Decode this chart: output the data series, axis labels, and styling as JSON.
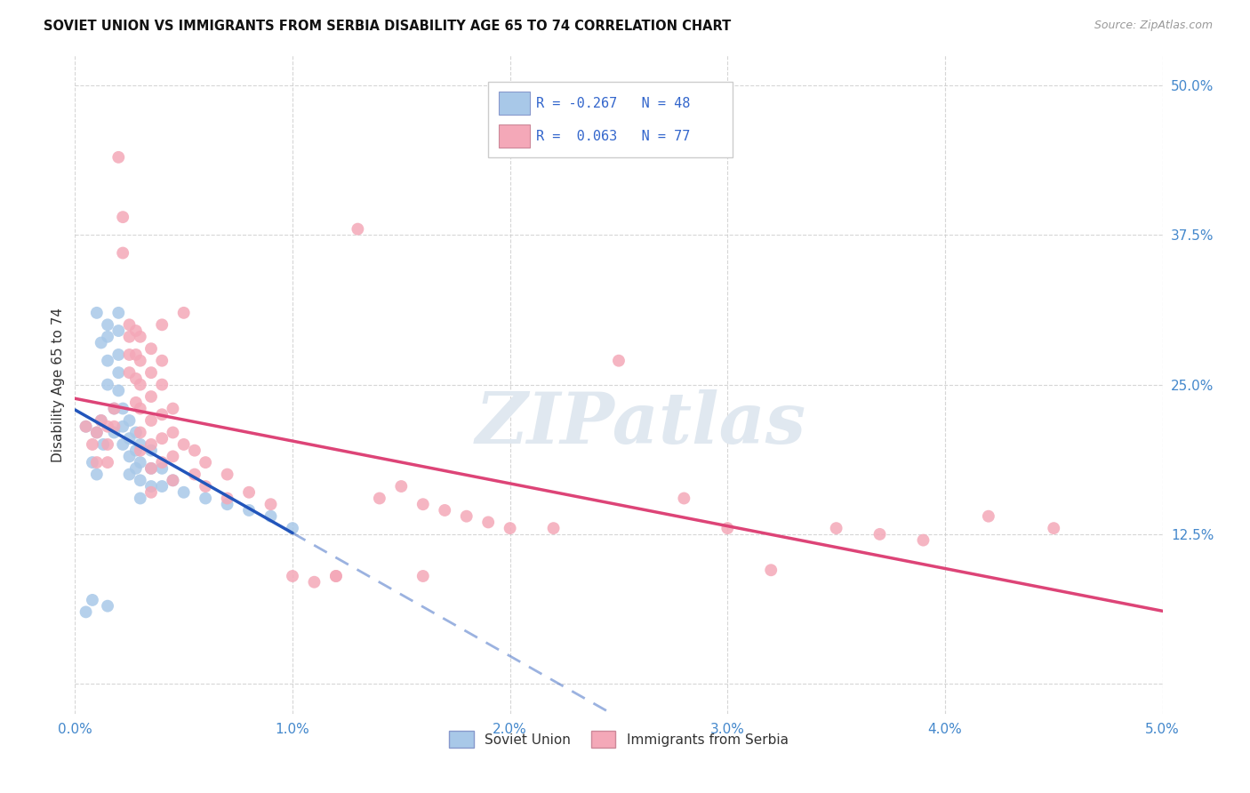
{
  "title": "SOVIET UNION VS IMMIGRANTS FROM SERBIA DISABILITY AGE 65 TO 74 CORRELATION CHART",
  "source": "Source: ZipAtlas.com",
  "ylabel": "Disability Age 65 to 74",
  "legend_blue_label": "Soviet Union",
  "legend_pink_label": "Immigrants from Serbia",
  "R_blue": -0.267,
  "N_blue": 48,
  "R_pink": 0.063,
  "N_pink": 77,
  "blue_color": "#a8c8e8",
  "pink_color": "#f4a8b8",
  "blue_line_color": "#2255bb",
  "pink_line_color": "#dd4477",
  "xmin": 0.0,
  "xmax": 0.05,
  "ymin": -0.025,
  "ymax": 0.525,
  "blue_scatter": [
    [
      0.0005,
      0.215
    ],
    [
      0.0008,
      0.185
    ],
    [
      0.001,
      0.21
    ],
    [
      0.001,
      0.175
    ],
    [
      0.0012,
      0.22
    ],
    [
      0.0013,
      0.2
    ],
    [
      0.0015,
      0.3
    ],
    [
      0.0015,
      0.29
    ],
    [
      0.0015,
      0.27
    ],
    [
      0.0015,
      0.25
    ],
    [
      0.0018,
      0.23
    ],
    [
      0.0018,
      0.21
    ],
    [
      0.002,
      0.31
    ],
    [
      0.002,
      0.295
    ],
    [
      0.002,
      0.275
    ],
    [
      0.002,
      0.26
    ],
    [
      0.002,
      0.245
    ],
    [
      0.0022,
      0.23
    ],
    [
      0.0022,
      0.215
    ],
    [
      0.0022,
      0.2
    ],
    [
      0.0025,
      0.22
    ],
    [
      0.0025,
      0.205
    ],
    [
      0.0025,
      0.19
    ],
    [
      0.0025,
      0.175
    ],
    [
      0.0028,
      0.21
    ],
    [
      0.0028,
      0.195
    ],
    [
      0.0028,
      0.18
    ],
    [
      0.003,
      0.2
    ],
    [
      0.003,
      0.185
    ],
    [
      0.003,
      0.17
    ],
    [
      0.003,
      0.155
    ],
    [
      0.0035,
      0.195
    ],
    [
      0.0035,
      0.18
    ],
    [
      0.0035,
      0.165
    ],
    [
      0.004,
      0.18
    ],
    [
      0.004,
      0.165
    ],
    [
      0.0045,
      0.17
    ],
    [
      0.005,
      0.16
    ],
    [
      0.0005,
      0.06
    ],
    [
      0.0008,
      0.07
    ],
    [
      0.006,
      0.155
    ],
    [
      0.007,
      0.15
    ],
    [
      0.008,
      0.145
    ],
    [
      0.001,
      0.31
    ],
    [
      0.0012,
      0.285
    ],
    [
      0.0015,
      0.065
    ],
    [
      0.009,
      0.14
    ],
    [
      0.01,
      0.13
    ]
  ],
  "pink_scatter": [
    [
      0.0005,
      0.215
    ],
    [
      0.0008,
      0.2
    ],
    [
      0.001,
      0.21
    ],
    [
      0.001,
      0.185
    ],
    [
      0.0012,
      0.22
    ],
    [
      0.0015,
      0.215
    ],
    [
      0.0015,
      0.2
    ],
    [
      0.0015,
      0.185
    ],
    [
      0.0018,
      0.23
    ],
    [
      0.0018,
      0.215
    ],
    [
      0.002,
      0.44
    ],
    [
      0.0022,
      0.39
    ],
    [
      0.0022,
      0.36
    ],
    [
      0.0025,
      0.3
    ],
    [
      0.0025,
      0.29
    ],
    [
      0.0025,
      0.275
    ],
    [
      0.0025,
      0.26
    ],
    [
      0.0028,
      0.295
    ],
    [
      0.0028,
      0.275
    ],
    [
      0.0028,
      0.255
    ],
    [
      0.0028,
      0.235
    ],
    [
      0.003,
      0.29
    ],
    [
      0.003,
      0.27
    ],
    [
      0.003,
      0.25
    ],
    [
      0.003,
      0.23
    ],
    [
      0.003,
      0.21
    ],
    [
      0.003,
      0.195
    ],
    [
      0.0035,
      0.28
    ],
    [
      0.0035,
      0.26
    ],
    [
      0.0035,
      0.24
    ],
    [
      0.0035,
      0.22
    ],
    [
      0.0035,
      0.2
    ],
    [
      0.0035,
      0.18
    ],
    [
      0.0035,
      0.16
    ],
    [
      0.004,
      0.3
    ],
    [
      0.004,
      0.27
    ],
    [
      0.004,
      0.25
    ],
    [
      0.004,
      0.225
    ],
    [
      0.004,
      0.205
    ],
    [
      0.004,
      0.185
    ],
    [
      0.0045,
      0.23
    ],
    [
      0.0045,
      0.21
    ],
    [
      0.0045,
      0.19
    ],
    [
      0.0045,
      0.17
    ],
    [
      0.005,
      0.31
    ],
    [
      0.005,
      0.2
    ],
    [
      0.0055,
      0.195
    ],
    [
      0.0055,
      0.175
    ],
    [
      0.006,
      0.185
    ],
    [
      0.006,
      0.165
    ],
    [
      0.007,
      0.175
    ],
    [
      0.007,
      0.155
    ],
    [
      0.008,
      0.16
    ],
    [
      0.009,
      0.15
    ],
    [
      0.01,
      0.09
    ],
    [
      0.011,
      0.085
    ],
    [
      0.012,
      0.09
    ],
    [
      0.013,
      0.38
    ],
    [
      0.014,
      0.155
    ],
    [
      0.015,
      0.165
    ],
    [
      0.016,
      0.15
    ],
    [
      0.017,
      0.145
    ],
    [
      0.018,
      0.14
    ],
    [
      0.019,
      0.135
    ],
    [
      0.02,
      0.13
    ],
    [
      0.022,
      0.13
    ],
    [
      0.025,
      0.27
    ],
    [
      0.028,
      0.155
    ],
    [
      0.03,
      0.13
    ],
    [
      0.032,
      0.095
    ],
    [
      0.035,
      0.13
    ],
    [
      0.037,
      0.125
    ],
    [
      0.039,
      0.12
    ],
    [
      0.042,
      0.14
    ],
    [
      0.045,
      0.13
    ],
    [
      0.012,
      0.09
    ],
    [
      0.016,
      0.09
    ]
  ],
  "background_color": "#ffffff",
  "grid_color": "#cccccc"
}
